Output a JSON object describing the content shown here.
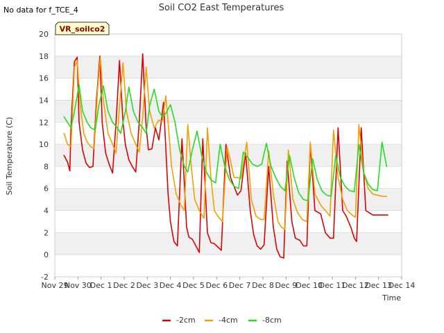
{
  "no_data_note": "No data for f_TCE_4",
  "site_label": "VR_soilco2",
  "colors": {
    "series_-2cm": "#dd0000",
    "series_-4cm": "#f0a000",
    "series_-8cm": "#22dd22",
    "band": "#f0f0f0",
    "grid": "#dddddd",
    "badge_fill": "#ffffcc",
    "badge_stroke": "#333333"
  },
  "chart_data": {
    "type": "line",
    "title": "Soil CO2 East Temperatures",
    "xlabel": "Time",
    "ylabel": "Soil Temperature (C)",
    "ylim": [
      -2,
      20
    ],
    "xlim": [
      0,
      15
    ],
    "y_ticks": [
      -2,
      0,
      2,
      4,
      6,
      8,
      10,
      12,
      14,
      16,
      18,
      20
    ],
    "x_ticks": [
      {
        "pos": 0,
        "label": "Nov 29"
      },
      {
        "pos": 1,
        "label": "Nov 30"
      },
      {
        "pos": 2,
        "label": "Dec 1"
      },
      {
        "pos": 3,
        "label": "Dec 2"
      },
      {
        "pos": 4,
        "label": "Dec 3"
      },
      {
        "pos": 5,
        "label": "Dec 4"
      },
      {
        "pos": 6,
        "label": "Dec 5"
      },
      {
        "pos": 7,
        "label": "Dec 6"
      },
      {
        "pos": 8,
        "label": "Dec 7"
      },
      {
        "pos": 9,
        "label": "Dec 8"
      },
      {
        "pos": 10,
        "label": "Dec 9"
      },
      {
        "pos": 11,
        "label": "Dec 10"
      },
      {
        "pos": 12,
        "label": "Dec 11"
      },
      {
        "pos": 13,
        "label": "Dec 12"
      },
      {
        "pos": 14,
        "label": "Dec 13"
      },
      {
        "pos": 15,
        "label": "Dec 14"
      }
    ],
    "grid": true,
    "legend_position": "bottom-center",
    "series": [
      {
        "name": "-2cm",
        "color": "#dd0000",
        "x": [
          0.4,
          0.55,
          0.65,
          0.7,
          0.85,
          0.97,
          1.05,
          1.2,
          1.35,
          1.5,
          1.65,
          1.8,
          1.95,
          2.05,
          2.2,
          2.35,
          2.5,
          2.65,
          2.8,
          2.95,
          3.05,
          3.2,
          3.35,
          3.5,
          3.65,
          3.8,
          3.95,
          4.05,
          4.2,
          4.35,
          4.5,
          4.6,
          4.7,
          4.9,
          5.0,
          5.15,
          5.3,
          5.5,
          5.7,
          5.8,
          5.95,
          6.05,
          6.25,
          6.4,
          6.6,
          6.75,
          6.9,
          7.0,
          7.2,
          7.4,
          7.6,
          7.75,
          7.9,
          8.05,
          8.25,
          8.45,
          8.6,
          8.75,
          8.9,
          9.05,
          9.25,
          9.45,
          9.6,
          9.75,
          9.9,
          10.05,
          10.25,
          10.4,
          10.6,
          10.75,
          10.9,
          11.05,
          11.25,
          11.5,
          11.7,
          11.9,
          12.05,
          12.25,
          12.45,
          12.6,
          12.8,
          12.95,
          13.05,
          13.25,
          13.45,
          13.6,
          13.75,
          13.9,
          14.05,
          14.25,
          14.4
        ],
        "values": [
          9.0,
          8.4,
          7.6,
          11.5,
          17.5,
          17.9,
          12.0,
          9.5,
          8.3,
          7.9,
          8.0,
          14.0,
          18.0,
          12.0,
          9.2,
          8.2,
          7.4,
          12.0,
          17.6,
          12.0,
          10.0,
          8.6,
          8.0,
          7.5,
          12.0,
          18.2,
          11.5,
          9.5,
          9.6,
          11.5,
          10.4,
          12.0,
          13.8,
          5.5,
          3.0,
          1.2,
          0.8,
          10.5,
          2.5,
          1.6,
          1.4,
          1.0,
          0.2,
          10.5,
          2.0,
          1.1,
          1.0,
          0.8,
          0.4,
          10.0,
          7.0,
          6.2,
          5.4,
          5.8,
          9.2,
          4.0,
          1.8,
          0.8,
          0.5,
          0.9,
          8.0,
          2.5,
          0.5,
          -0.2,
          -0.3,
          8.5,
          3.0,
          1.5,
          1.3,
          0.8,
          0.8,
          10.0,
          4.0,
          3.7,
          2.0,
          1.5,
          1.5,
          11.5,
          4.0,
          3.5,
          2.5,
          1.5,
          1.2,
          11.5,
          4.0,
          3.8,
          3.6,
          3.6,
          3.6,
          3.6,
          3.6
        ]
      },
      {
        "name": "-4cm",
        "color": "#f0a000",
        "x": [
          0.4,
          0.55,
          0.7,
          0.85,
          0.97,
          1.1,
          1.25,
          1.4,
          1.55,
          1.7,
          1.85,
          1.97,
          2.1,
          2.3,
          2.5,
          2.65,
          2.8,
          2.95,
          3.1,
          3.3,
          3.5,
          3.65,
          3.8,
          3.95,
          4.1,
          4.3,
          4.5,
          4.65,
          4.8,
          4.9,
          5.05,
          5.25,
          5.45,
          5.6,
          5.75,
          5.9,
          6.05,
          6.25,
          6.45,
          6.6,
          6.75,
          6.9,
          7.05,
          7.25,
          7.45,
          7.6,
          7.75,
          7.9,
          8.05,
          8.3,
          8.5,
          8.7,
          8.9,
          9.05,
          9.25,
          9.45,
          9.65,
          9.8,
          9.95,
          10.1,
          10.3,
          10.5,
          10.7,
          10.9,
          11.05,
          11.25,
          11.5,
          11.7,
          11.9,
          12.05,
          12.25,
          12.45,
          12.65,
          12.85,
          13.0,
          13.15,
          13.35,
          13.55,
          13.75,
          13.95,
          14.15,
          14.35
        ],
        "values": [
          11.0,
          10.0,
          9.8,
          17.0,
          17.6,
          13.5,
          11.0,
          10.2,
          9.8,
          9.6,
          15.0,
          17.9,
          14.0,
          11.0,
          10.0,
          9.2,
          13.5,
          17.4,
          13.0,
          11.0,
          10.0,
          9.3,
          12.5,
          17.0,
          13.0,
          11.5,
          12.2,
          12.1,
          14.4,
          12.0,
          8.0,
          5.5,
          4.5,
          4.0,
          11.8,
          8.0,
          5.0,
          4.0,
          3.3,
          11.5,
          7.0,
          4.0,
          3.5,
          3.0,
          9.8,
          8.5,
          7.0,
          7.0,
          6.9,
          10.2,
          5.0,
          3.5,
          3.2,
          3.2,
          9.4,
          5.5,
          3.0,
          2.5,
          2.3,
          9.5,
          5.0,
          3.8,
          3.2,
          3.0,
          10.2,
          5.5,
          4.5,
          4.0,
          3.5,
          11.3,
          7.0,
          5.0,
          4.0,
          3.6,
          3.4,
          11.8,
          7.5,
          6.0,
          5.5,
          5.4,
          5.3,
          5.3
        ]
      },
      {
        "name": "-8cm",
        "color": "#22dd22",
        "x": [
          0.4,
          0.55,
          0.7,
          0.85,
          1.05,
          1.2,
          1.4,
          1.55,
          1.75,
          1.9,
          2.1,
          2.3,
          2.5,
          2.7,
          2.85,
          3.05,
          3.2,
          3.4,
          3.6,
          3.8,
          3.95,
          4.1,
          4.3,
          4.5,
          4.65,
          4.8,
          5.0,
          5.2,
          5.4,
          5.6,
          5.75,
          5.95,
          6.15,
          6.35,
          6.55,
          6.75,
          6.95,
          7.15,
          7.35,
          7.55,
          7.75,
          7.95,
          8.15,
          8.35,
          8.55,
          8.75,
          8.95,
          9.15,
          9.35,
          9.55,
          9.75,
          9.95,
          10.15,
          10.35,
          10.55,
          10.75,
          10.95,
          11.15,
          11.35,
          11.55,
          11.75,
          11.95,
          12.15,
          12.35,
          12.55,
          12.75,
          12.95,
          13.15,
          13.35,
          13.55,
          13.75,
          13.95,
          14.15,
          14.35
        ],
        "values": [
          12.5,
          12.0,
          11.5,
          13.0,
          15.4,
          13.0,
          12.0,
          11.5,
          11.3,
          13.5,
          15.3,
          13.0,
          12.0,
          11.5,
          11.0,
          13.0,
          15.2,
          13.0,
          12.0,
          11.5,
          11.0,
          13.5,
          15.0,
          13.0,
          12.5,
          12.8,
          13.6,
          12.0,
          9.5,
          8.0,
          7.5,
          9.5,
          11.2,
          9.0,
          7.5,
          6.8,
          6.5,
          10.0,
          8.0,
          6.8,
          6.2,
          6.0,
          9.3,
          8.8,
          8.2,
          8.0,
          8.2,
          10.1,
          8.0,
          7.0,
          6.2,
          5.8,
          9.0,
          7.0,
          5.6,
          5.0,
          4.9,
          8.7,
          6.8,
          5.8,
          5.4,
          5.3,
          9.0,
          7.0,
          6.2,
          5.8,
          5.7,
          10.0,
          7.5,
          6.4,
          5.9,
          5.8,
          10.2,
          8.0
        ]
      }
    ]
  }
}
